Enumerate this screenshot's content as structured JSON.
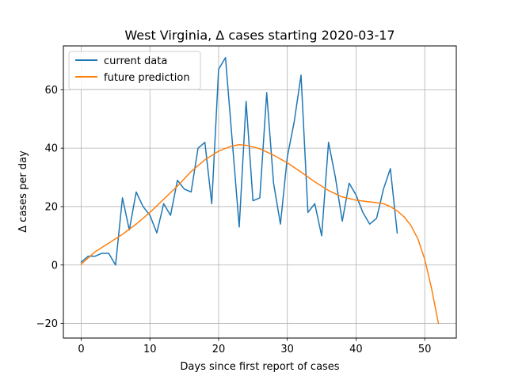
{
  "chart_data": {
    "type": "line",
    "title": "West Virginia, Δ cases starting 2020-03-17",
    "xlabel": "Days since first report of cases",
    "ylabel": "Δ cases per day",
    "xlim": [
      -2.6,
      54.6
    ],
    "ylim": [
      -25,
      75
    ],
    "xticks": [
      0,
      10,
      20,
      30,
      40,
      50
    ],
    "yticks": [
      -20,
      0,
      20,
      40,
      60
    ],
    "grid": true,
    "legend_position": "top-left",
    "colors": {
      "current": "#1f77b4",
      "future": "#ff7f0e"
    },
    "series": [
      {
        "name": "current data",
        "x": [
          0,
          1,
          2,
          3,
          4,
          5,
          6,
          7,
          8,
          9,
          10,
          11,
          12,
          13,
          14,
          15,
          16,
          17,
          18,
          19,
          20,
          21,
          22,
          23,
          24,
          25,
          26,
          27,
          28,
          29,
          30,
          31,
          32,
          33,
          34,
          35,
          36,
          37,
          38,
          39,
          40,
          41,
          42,
          43,
          44,
          45,
          46
        ],
        "values": [
          1,
          3,
          3,
          4,
          4,
          0,
          23,
          12,
          25,
          20,
          17,
          11,
          21,
          17,
          29,
          26,
          25,
          40,
          42,
          21,
          67,
          71,
          42,
          13,
          56,
          22,
          23,
          59,
          28,
          14,
          37,
          49,
          65,
          18,
          21,
          10,
          42,
          30,
          15,
          28,
          24,
          18,
          14,
          16,
          26,
          33,
          11
        ]
      },
      {
        "name": "future prediction",
        "x": [
          0,
          2,
          4,
          6,
          8,
          10,
          12,
          14,
          16,
          18,
          20,
          22,
          23,
          24,
          26,
          28,
          30,
          32,
          34,
          36,
          38,
          40,
          42,
          44,
          45,
          46,
          47,
          48,
          49,
          50,
          51,
          52
        ],
        "values": [
          0.3,
          4.5,
          7.5,
          10.5,
          14,
          18,
          22.5,
          27,
          32,
          36,
          39,
          40.8,
          41.2,
          41,
          39.8,
          37.6,
          35,
          31.8,
          28.5,
          25.5,
          23.3,
          22.2,
          21.6,
          21,
          20,
          18.5,
          16.5,
          13.5,
          9,
          2,
          -8,
          -20
        ]
      }
    ]
  }
}
